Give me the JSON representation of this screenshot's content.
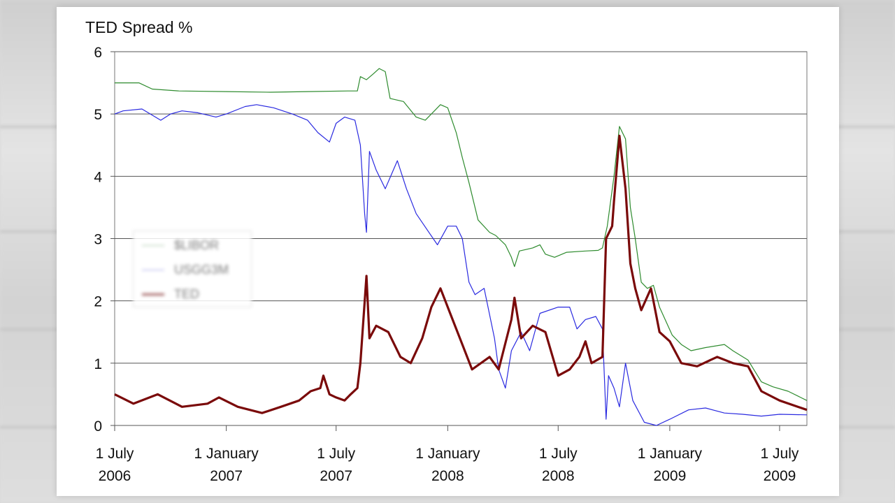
{
  "chart_data": {
    "type": "line",
    "title": "TED Spread %",
    "ylim": [
      0,
      6
    ],
    "yticks": [
      "0",
      "1",
      "2",
      "3",
      "4",
      "5",
      "6"
    ],
    "xlim": [
      "2006-07-01",
      "2009-08-15"
    ],
    "xticks": [
      {
        "date": "2006-07-01",
        "line1": "1 July",
        "line2": "2006"
      },
      {
        "date": "2007-01-01",
        "line1": "1 January",
        "line2": "2007"
      },
      {
        "date": "2007-07-01",
        "line1": "1 July",
        "line2": "2007"
      },
      {
        "date": "2008-01-01",
        "line1": "1 January",
        "line2": "2008"
      },
      {
        "date": "2008-07-01",
        "line1": "1 July",
        "line2": "2008"
      },
      {
        "date": "2009-01-01",
        "line1": "1 January",
        "line2": "2009"
      },
      {
        "date": "2009-07-01",
        "line1": "1 July",
        "line2": "2009"
      }
    ],
    "grid": "horizontal",
    "legend_position": "left-middle",
    "series": [
      {
        "name": "$LIBOR",
        "color": "#2e8b2e",
        "points": [
          [
            "2006-07-01",
            5.5
          ],
          [
            "2006-08-10",
            5.5
          ],
          [
            "2006-09-01",
            5.4
          ],
          [
            "2006-10-15",
            5.37
          ],
          [
            "2007-01-01",
            5.36
          ],
          [
            "2007-03-15",
            5.35
          ],
          [
            "2007-05-15",
            5.36
          ],
          [
            "2007-07-20",
            5.37
          ],
          [
            "2007-08-05",
            5.37
          ],
          [
            "2007-08-10",
            5.6
          ],
          [
            "2007-08-20",
            5.55
          ],
          [
            "2007-09-01",
            5.65
          ],
          [
            "2007-09-10",
            5.73
          ],
          [
            "2007-09-20",
            5.68
          ],
          [
            "2007-09-28",
            5.25
          ],
          [
            "2007-10-20",
            5.2
          ],
          [
            "2007-11-10",
            4.95
          ],
          [
            "2007-11-25",
            4.9
          ],
          [
            "2007-12-10",
            5.05
          ],
          [
            "2007-12-20",
            5.15
          ],
          [
            "2008-01-01",
            5.1
          ],
          [
            "2008-01-15",
            4.7
          ],
          [
            "2008-01-25",
            4.3
          ],
          [
            "2008-02-05",
            3.9
          ],
          [
            "2008-02-20",
            3.3
          ],
          [
            "2008-03-10",
            3.1
          ],
          [
            "2008-03-20",
            3.05
          ],
          [
            "2008-04-05",
            2.9
          ],
          [
            "2008-04-15",
            2.7
          ],
          [
            "2008-04-20",
            2.55
          ],
          [
            "2008-04-28",
            2.8
          ],
          [
            "2008-05-20",
            2.85
          ],
          [
            "2008-06-01",
            2.9
          ],
          [
            "2008-06-10",
            2.75
          ],
          [
            "2008-06-25",
            2.7
          ],
          [
            "2008-07-15",
            2.78
          ],
          [
            "2008-08-15",
            2.8
          ],
          [
            "2008-09-05",
            2.81
          ],
          [
            "2008-09-12",
            2.85
          ],
          [
            "2008-09-20",
            3.2
          ],
          [
            "2008-10-01",
            4.0
          ],
          [
            "2008-10-10",
            4.8
          ],
          [
            "2008-10-20",
            4.6
          ],
          [
            "2008-10-28",
            3.5
          ],
          [
            "2008-11-05",
            3.0
          ],
          [
            "2008-11-15",
            2.3
          ],
          [
            "2008-11-25",
            2.2
          ],
          [
            "2008-12-05",
            2.25
          ],
          [
            "2008-12-15",
            1.9
          ],
          [
            "2009-01-05",
            1.45
          ],
          [
            "2009-01-20",
            1.3
          ],
          [
            "2009-02-05",
            1.2
          ],
          [
            "2009-03-01",
            1.25
          ],
          [
            "2009-04-01",
            1.3
          ],
          [
            "2009-04-15",
            1.2
          ],
          [
            "2009-05-10",
            1.05
          ],
          [
            "2009-06-01",
            0.7
          ],
          [
            "2009-06-20",
            0.62
          ],
          [
            "2009-07-15",
            0.55
          ],
          [
            "2009-08-15",
            0.4
          ]
        ]
      },
      {
        "name": "USGG3M",
        "color": "#2a2ae0",
        "points": [
          [
            "2006-07-01",
            5.0
          ],
          [
            "2006-07-15",
            5.05
          ],
          [
            "2006-08-15",
            5.08
          ],
          [
            "2006-09-15",
            4.9
          ],
          [
            "2006-10-01",
            5.0
          ],
          [
            "2006-10-20",
            5.05
          ],
          [
            "2006-11-15",
            5.02
          ],
          [
            "2006-12-15",
            4.95
          ],
          [
            "2007-01-01",
            5.0
          ],
          [
            "2007-02-01",
            5.12
          ],
          [
            "2007-02-20",
            5.15
          ],
          [
            "2007-03-20",
            5.1
          ],
          [
            "2007-04-20",
            5.0
          ],
          [
            "2007-05-15",
            4.9
          ],
          [
            "2007-06-01",
            4.7
          ],
          [
            "2007-06-20",
            4.55
          ],
          [
            "2007-07-01",
            4.85
          ],
          [
            "2007-07-15",
            4.95
          ],
          [
            "2007-08-01",
            4.9
          ],
          [
            "2007-08-10",
            4.5
          ],
          [
            "2007-08-17",
            3.4
          ],
          [
            "2007-08-20",
            3.1
          ],
          [
            "2007-08-25",
            4.4
          ],
          [
            "2007-09-05",
            4.1
          ],
          [
            "2007-09-20",
            3.8
          ],
          [
            "2007-10-10",
            4.25
          ],
          [
            "2007-10-25",
            3.8
          ],
          [
            "2007-11-10",
            3.4
          ],
          [
            "2007-12-01",
            3.1
          ],
          [
            "2007-12-15",
            2.9
          ],
          [
            "2008-01-01",
            3.2
          ],
          [
            "2008-01-15",
            3.2
          ],
          [
            "2008-01-25",
            3.0
          ],
          [
            "2008-02-05",
            2.3
          ],
          [
            "2008-02-15",
            2.1
          ],
          [
            "2008-03-01",
            2.2
          ],
          [
            "2008-03-18",
            1.4
          ],
          [
            "2008-03-25",
            0.9
          ],
          [
            "2008-04-05",
            0.6
          ],
          [
            "2008-04-15",
            1.2
          ],
          [
            "2008-05-01",
            1.5
          ],
          [
            "2008-05-15",
            1.2
          ],
          [
            "2008-06-01",
            1.8
          ],
          [
            "2008-07-01",
            1.9
          ],
          [
            "2008-07-20",
            1.9
          ],
          [
            "2008-08-01",
            1.55
          ],
          [
            "2008-08-15",
            1.7
          ],
          [
            "2008-09-01",
            1.75
          ],
          [
            "2008-09-12",
            1.55
          ],
          [
            "2008-09-18",
            0.1
          ],
          [
            "2008-09-22",
            0.8
          ],
          [
            "2008-10-01",
            0.6
          ],
          [
            "2008-10-10",
            0.3
          ],
          [
            "2008-10-20",
            1.0
          ],
          [
            "2008-11-01",
            0.4
          ],
          [
            "2008-11-20",
            0.05
          ],
          [
            "2008-12-10",
            0.0
          ],
          [
            "2009-01-01",
            0.1
          ],
          [
            "2009-02-01",
            0.25
          ],
          [
            "2009-03-01",
            0.28
          ],
          [
            "2009-04-01",
            0.2
          ],
          [
            "2009-05-01",
            0.18
          ],
          [
            "2009-06-01",
            0.15
          ],
          [
            "2009-07-01",
            0.18
          ],
          [
            "2009-08-15",
            0.17
          ]
        ]
      },
      {
        "name": "TED",
        "color": "#7a0a0a",
        "points": [
          [
            "2006-07-01",
            0.5
          ],
          [
            "2006-08-01",
            0.35
          ],
          [
            "2006-09-10",
            0.5
          ],
          [
            "2006-10-20",
            0.3
          ],
          [
            "2006-12-01",
            0.35
          ],
          [
            "2006-12-20",
            0.45
          ],
          [
            "2007-01-20",
            0.3
          ],
          [
            "2007-03-01",
            0.2
          ],
          [
            "2007-04-01",
            0.3
          ],
          [
            "2007-05-01",
            0.4
          ],
          [
            "2007-05-20",
            0.55
          ],
          [
            "2007-06-05",
            0.6
          ],
          [
            "2007-06-10",
            0.8
          ],
          [
            "2007-06-20",
            0.5
          ],
          [
            "2007-07-01",
            0.45
          ],
          [
            "2007-07-15",
            0.4
          ],
          [
            "2007-07-25",
            0.5
          ],
          [
            "2007-08-05",
            0.6
          ],
          [
            "2007-08-10",
            1.0
          ],
          [
            "2007-08-20",
            2.4
          ],
          [
            "2007-08-25",
            1.4
          ],
          [
            "2007-09-05",
            1.6
          ],
          [
            "2007-09-25",
            1.5
          ],
          [
            "2007-10-15",
            1.1
          ],
          [
            "2007-11-01",
            1.0
          ],
          [
            "2007-11-20",
            1.4
          ],
          [
            "2007-12-05",
            1.9
          ],
          [
            "2007-12-20",
            2.2
          ],
          [
            "2008-01-05",
            1.8
          ],
          [
            "2008-01-25",
            1.3
          ],
          [
            "2008-02-10",
            0.9
          ],
          [
            "2008-03-10",
            1.1
          ],
          [
            "2008-03-25",
            0.9
          ],
          [
            "2008-04-15",
            1.7
          ],
          [
            "2008-04-20",
            2.05
          ],
          [
            "2008-05-01",
            1.4
          ],
          [
            "2008-05-20",
            1.6
          ],
          [
            "2008-06-10",
            1.5
          ],
          [
            "2008-07-01",
            0.8
          ],
          [
            "2008-07-20",
            0.9
          ],
          [
            "2008-08-05",
            1.1
          ],
          [
            "2008-08-15",
            1.35
          ],
          [
            "2008-08-25",
            1.0
          ],
          [
            "2008-09-12",
            1.1
          ],
          [
            "2008-09-18",
            3.0
          ],
          [
            "2008-09-28",
            3.2
          ],
          [
            "2008-10-01",
            3.6
          ],
          [
            "2008-10-10",
            4.65
          ],
          [
            "2008-10-20",
            3.8
          ],
          [
            "2008-10-28",
            2.6
          ],
          [
            "2008-11-05",
            2.2
          ],
          [
            "2008-11-15",
            1.85
          ],
          [
            "2008-12-01",
            2.2
          ],
          [
            "2008-12-15",
            1.5
          ],
          [
            "2009-01-01",
            1.35
          ],
          [
            "2009-01-20",
            1.0
          ],
          [
            "2009-02-15",
            0.95
          ],
          [
            "2009-03-20",
            1.1
          ],
          [
            "2009-04-15",
            1.0
          ],
          [
            "2009-05-10",
            0.95
          ],
          [
            "2009-06-01",
            0.55
          ],
          [
            "2009-07-01",
            0.4
          ],
          [
            "2009-08-15",
            0.25
          ]
        ]
      }
    ]
  }
}
